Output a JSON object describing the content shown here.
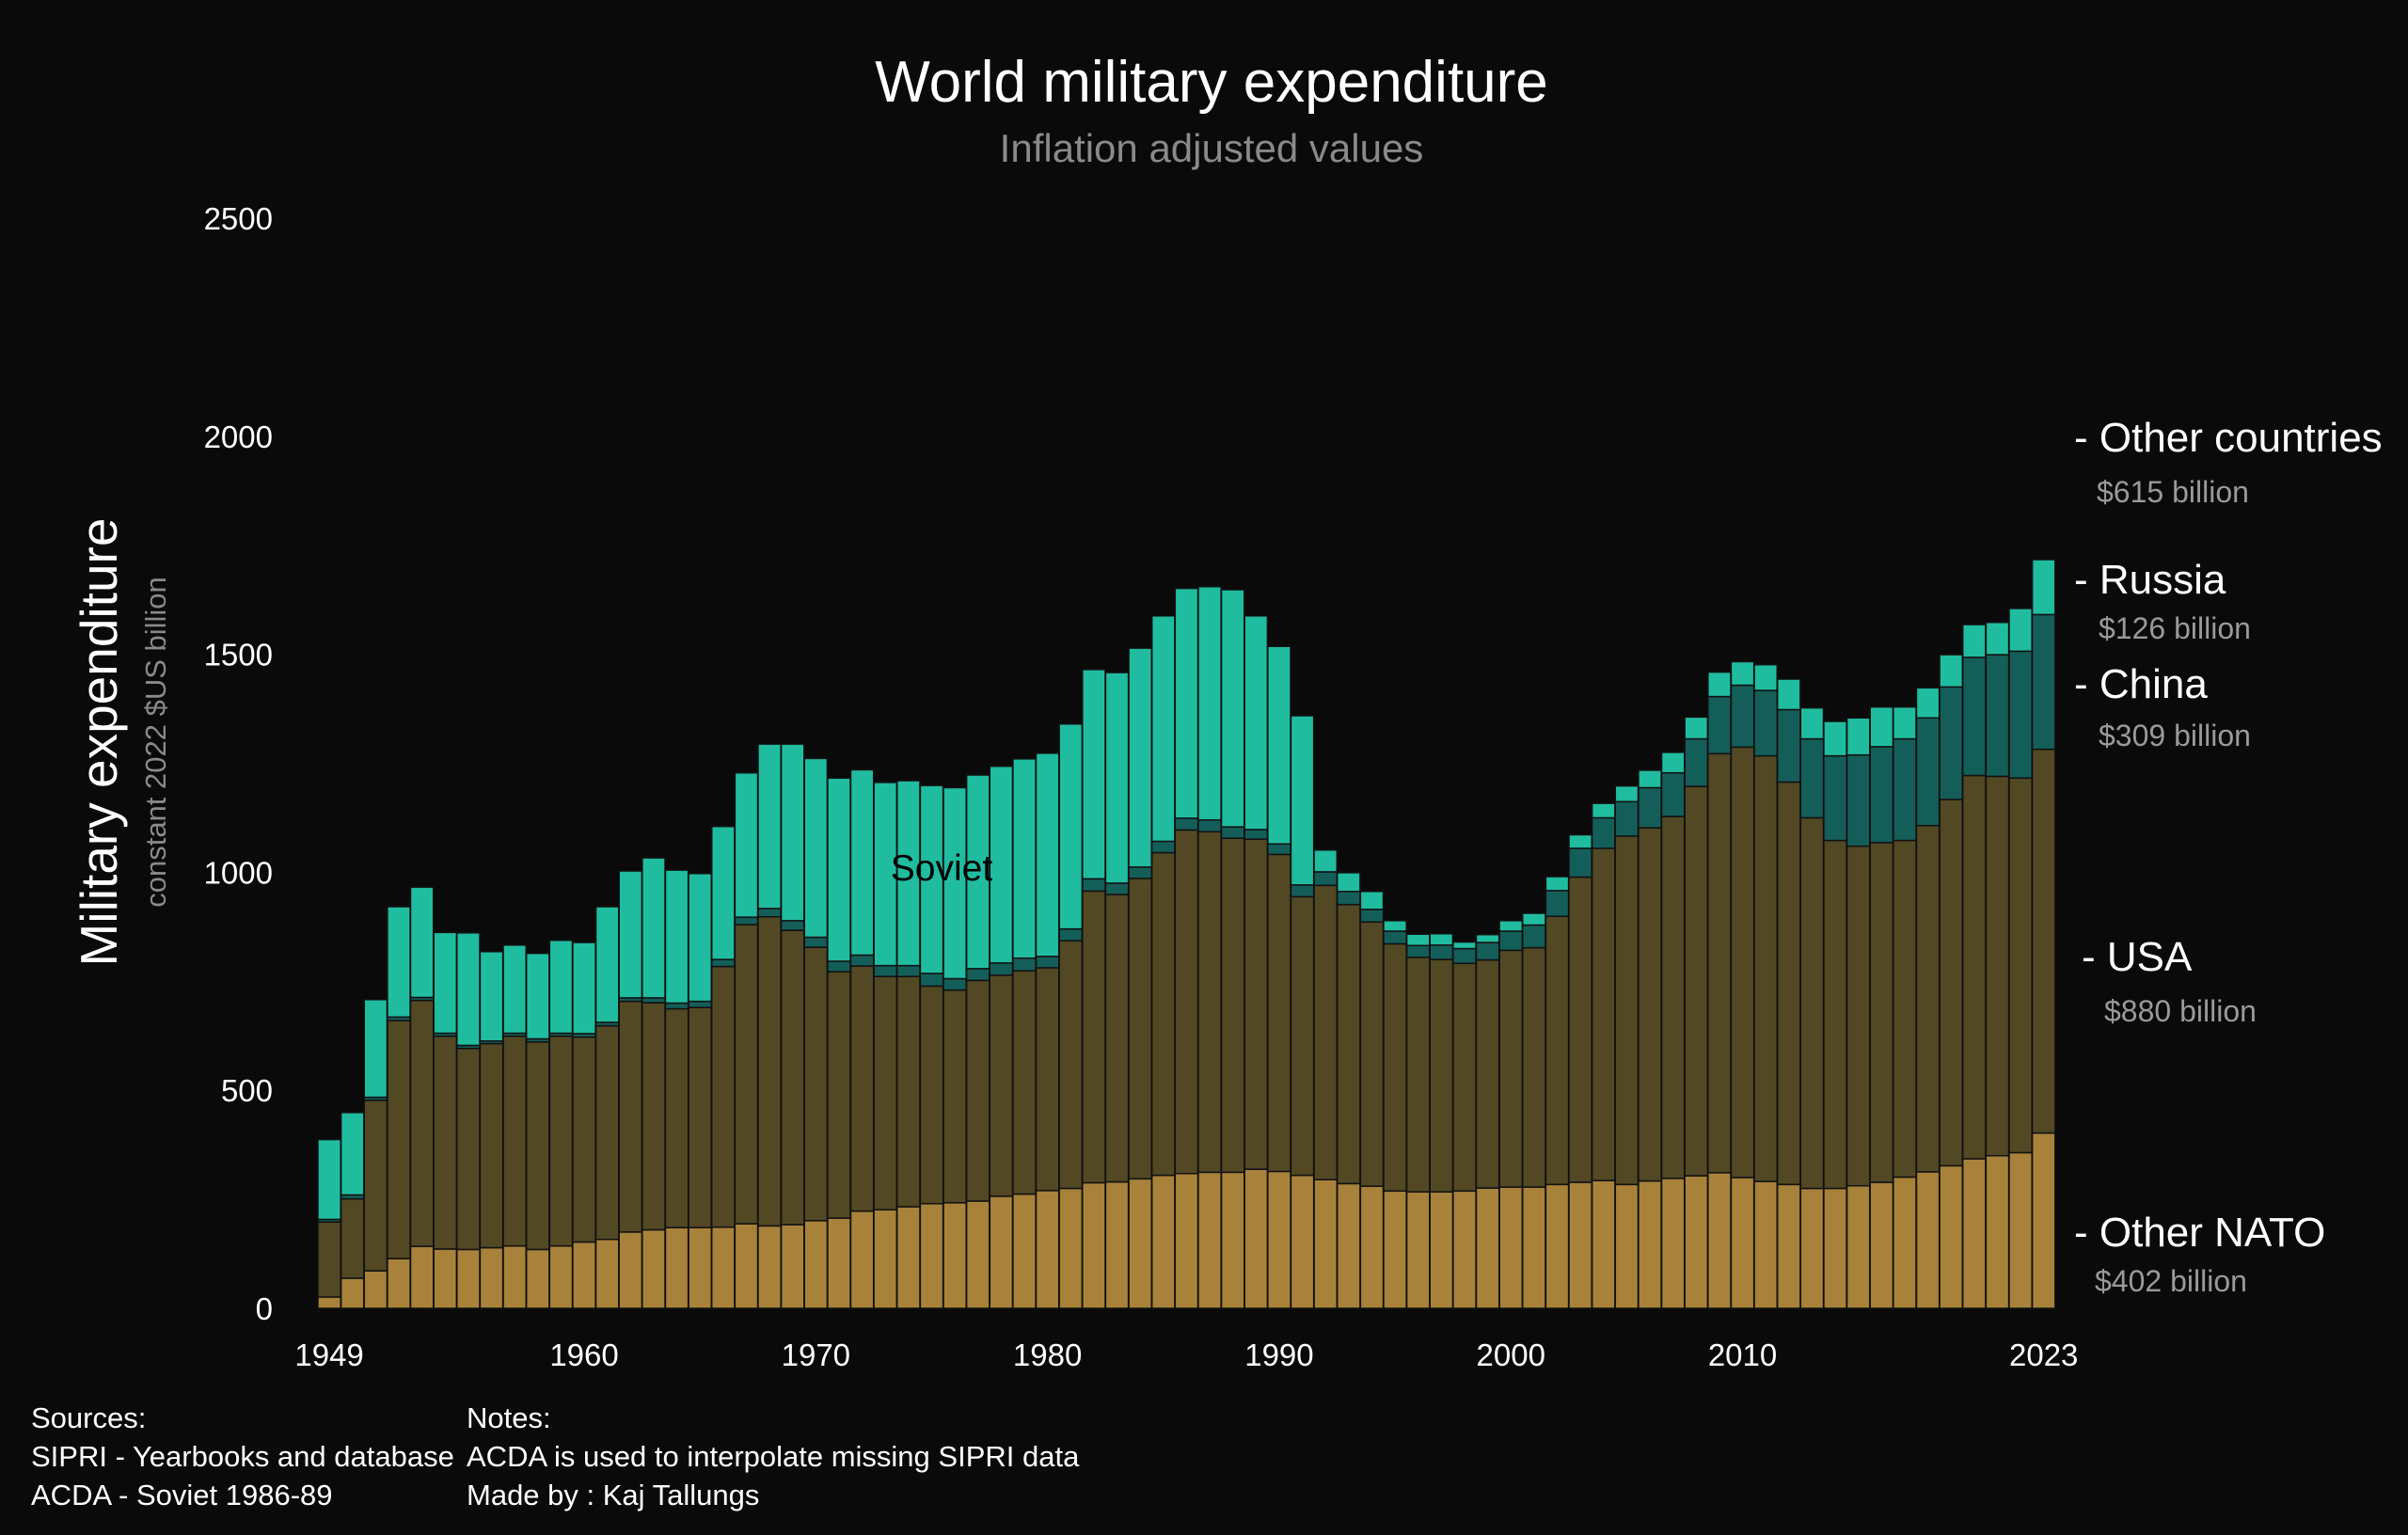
{
  "chart_data": {
    "type": "bar",
    "stacked": true,
    "title": "World military expenditure",
    "subtitle": "Inflation adjusted values",
    "ylabel": "Military expenditure",
    "ylabel_sub": "constant 2022 $US billion",
    "xlabel": "",
    "ylim": [
      0,
      2500
    ],
    "yticks": [
      "0",
      "500",
      "1000",
      "1500",
      "2000",
      "2500"
    ],
    "xticks": [
      "1949",
      "1960",
      "1970",
      "1980",
      "1990",
      "2000",
      "2010",
      "2023"
    ],
    "grid": false,
    "categories": [
      1949,
      1950,
      1951,
      1952,
      1953,
      1954,
      1955,
      1956,
      1957,
      1958,
      1959,
      1960,
      1961,
      1962,
      1963,
      1964,
      1965,
      1966,
      1967,
      1968,
      1969,
      1970,
      1971,
      1972,
      1973,
      1974,
      1975,
      1976,
      1977,
      1978,
      1979,
      1980,
      1981,
      1982,
      1983,
      1984,
      1985,
      1986,
      1987,
      1988,
      1989,
      1990,
      1991,
      1992,
      1993,
      1994,
      1995,
      1996,
      1997,
      1998,
      1999,
      2000,
      2001,
      2002,
      2003,
      2004,
      2005,
      2006,
      2007,
      2008,
      2009,
      2010,
      2011,
      2012,
      2013,
      2014,
      2015,
      2016,
      2017,
      2018,
      2019,
      2020,
      2021,
      2022,
      2023
    ],
    "series": [
      {
        "name": "Other NATO",
        "color": "#a8823a",
        "values": [
          26,
          69,
          86,
          114,
          142,
          136,
          135,
          139,
          143,
          135,
          143,
          152,
          158,
          175,
          180,
          185,
          185,
          186,
          194,
          189,
          192,
          201,
          207,
          223,
          226,
          233,
          240,
          242,
          246,
          257,
          262,
          270,
          275,
          288,
          290,
          297,
          305,
          309,
          312,
          312,
          319,
          314,
          305,
          295,
          286,
          280,
          269,
          267,
          267,
          269,
          276,
          278,
          278,
          284,
          289,
          293,
          284,
          292,
          298,
          304,
          311,
          300,
          291,
          284,
          275,
          275,
          281,
          289,
          301,
          313,
          327,
          343,
          350,
          357,
          402
        ]
      },
      {
        "name": "USA",
        "color": "#524823",
        "values": [
          172,
          182,
          391,
          546,
          564,
          488,
          461,
          468,
          481,
          476,
          481,
          470,
          490,
          529,
          521,
          502,
          505,
          598,
          686,
          709,
          675,
          627,
          565,
          562,
          535,
          528,
          499,
          488,
          506,
          507,
          512,
          511,
          568,
          669,
          659,
          689,
          740,
          788,
          781,
          766,
          757,
          727,
          639,
          675,
          640,
          606,
          567,
          538,
          533,
          522,
          523,
          543,
          549,
          615,
          700,
          762,
          799,
          810,
          830,
          893,
          961,
          987,
          976,
          923,
          850,
          798,
          779,
          779,
          772,
          794,
          840,
          879,
          870,
          859,
          880
        ]
      },
      {
        "name": "China",
        "color": "#145e5a",
        "values": [
          6,
          9,
          7,
          8,
          7,
          7,
          7,
          6,
          7,
          7,
          7,
          8,
          8,
          8,
          11,
          13,
          14,
          16,
          17,
          19,
          22,
          23,
          24,
          25,
          25,
          25,
          29,
          26,
          27,
          28,
          29,
          26,
          27,
          28,
          26,
          26,
          26,
          27,
          27,
          26,
          22,
          24,
          27,
          31,
          30,
          29,
          29,
          27,
          33,
          34,
          40,
          44,
          52,
          59,
          66,
          70,
          79,
          92,
          100,
          109,
          131,
          142,
          150,
          166,
          181,
          194,
          209,
          220,
          233,
          247,
          258,
          271,
          279,
          291,
          309
        ]
      },
      {
        "name": "Russia / Soviet",
        "color": "#20bca0",
        "values": [
          183,
          189,
          224,
          253,
          253,
          231,
          258,
          205,
          202,
          196,
          213,
          209,
          265,
          291,
          321,
          305,
          293,
          305,
          331,
          377,
          405,
          410,
          420,
          425,
          420,
          424,
          431,
          438,
          444,
          451,
          457,
          466,
          470,
          480,
          483,
          502,
          517,
          527,
          535,
          544,
          490,
          453,
          388,
          50,
          43,
          41,
          24,
          26,
          26,
          15,
          18,
          24,
          27,
          32,
          31,
          33,
          36,
          40,
          47,
          50,
          56,
          54,
          59,
          70,
          71,
          79,
          85,
          91,
          73,
          69,
          74,
          75,
          74,
          98,
          126
        ]
      }
    ],
    "annotations": [
      {
        "text": "Soviet",
        "x": 1974,
        "y": 1000
      }
    ],
    "legend": {
      "placement": "right",
      "items": [
        {
          "label": "- Other countries",
          "value": "$615 billion"
        },
        {
          "label": "- Russia",
          "value": "$126 billion"
        },
        {
          "label": "- China",
          "value": "$309 billion"
        },
        {
          "label": "- USA",
          "value": "$880 billion"
        },
        {
          "label": "- Other NATO",
          "value": "$402 billion"
        }
      ]
    }
  },
  "footer": {
    "sources_title": "Sources:",
    "sources": [
      "SIPRI - Yearbooks and database",
      "ACDA - Soviet 1986-89"
    ],
    "notes_title": "Notes:",
    "notes": [
      "ACDA is used to interpolate missing SIPRI data",
      "Made by : Kaj Tallungs"
    ]
  }
}
